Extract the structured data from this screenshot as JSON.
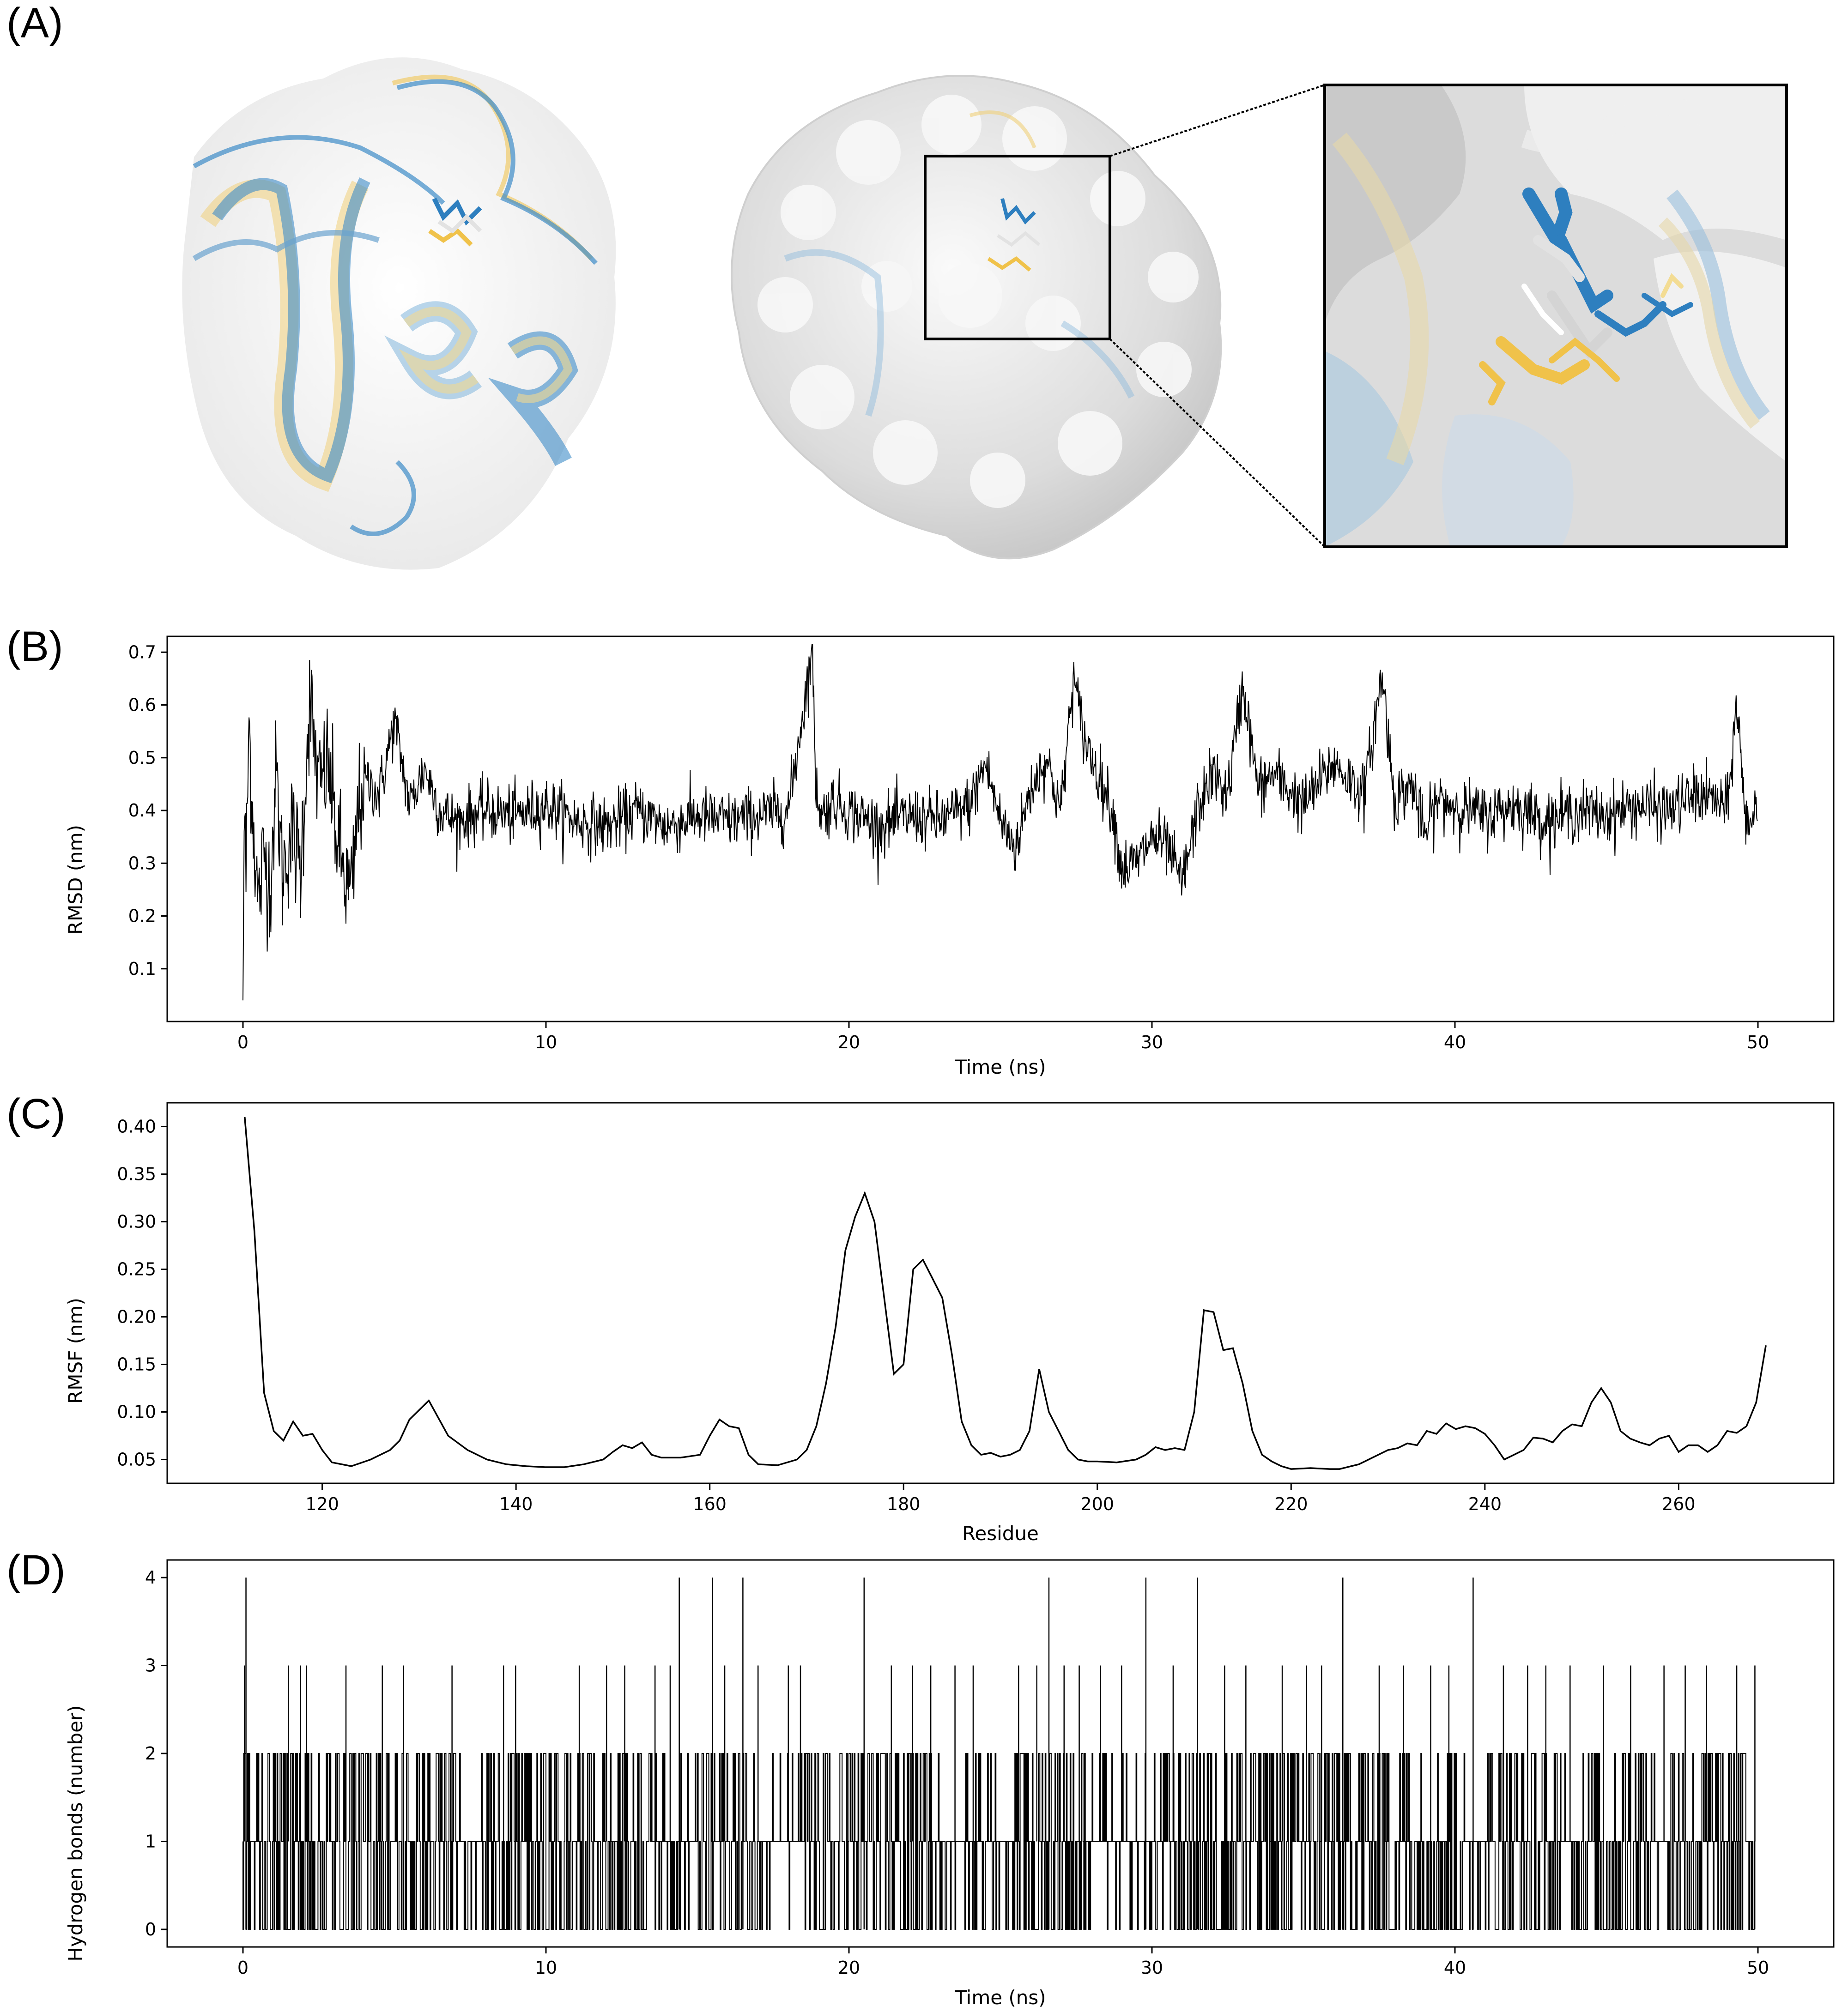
{
  "panels": {
    "a": "(A)",
    "b": "(B)",
    "c": "(C)",
    "d": "(D)"
  },
  "colors": {
    "blue": "#2e7fbf",
    "yellow": "#f0c24a",
    "white_ligand": "#e2e2e2",
    "surface": "#eeeeee",
    "line": "#000000"
  },
  "chart_data": [
    {
      "id": "rmsd",
      "type": "line",
      "title": "",
      "xlabel": "Time (ns)",
      "ylabel": "RMSD (nm)",
      "xlim": [
        -2.5,
        52.5
      ],
      "ylim": [
        0.0,
        0.73
      ],
      "xticks": [
        0,
        10,
        20,
        30,
        40,
        50
      ],
      "yticks": [
        0.1,
        0.2,
        0.3,
        0.4,
        0.5,
        0.6,
        0.7
      ],
      "ytick_labels": [
        "0.1",
        "0.2",
        "0.3",
        "0.4",
        "0.5",
        "0.6",
        "0.7"
      ],
      "series": [
        {
          "name": "RMSD",
          "x": [
            0,
            0.05,
            0.1,
            0.2,
            0.3,
            0.5,
            0.7,
            0.9,
            1.1,
            1.3,
            1.6,
            1.9,
            2.2,
            2.5,
            2.8,
            3.1,
            3.4,
            3.6,
            3.8,
            4.0,
            4.5,
            5.0,
            5.5,
            6.0,
            6.5,
            7,
            8,
            9,
            10,
            11,
            12,
            13,
            14,
            15,
            16,
            17,
            18,
            18.8,
            18.9,
            19.1,
            19.5,
            20,
            21,
            22,
            23,
            24,
            24.5,
            25,
            25.5,
            26,
            26.5,
            27,
            27.4,
            27.8,
            28.3,
            28.7,
            29,
            29.5,
            30,
            30.5,
            31,
            31.5,
            32,
            32.5,
            33,
            33.5,
            34,
            35,
            36,
            37,
            37.6,
            38,
            38.6,
            39,
            39.4,
            40,
            41,
            42,
            43,
            44,
            45,
            46,
            47,
            48,
            48.6,
            49,
            49.3,
            49.6,
            50
          ],
          "y": [
            0.04,
            0.44,
            0.27,
            0.57,
            0.42,
            0.22,
            0.32,
            0.26,
            0.47,
            0.28,
            0.36,
            0.29,
            0.61,
            0.44,
            0.49,
            0.35,
            0.26,
            0.24,
            0.4,
            0.46,
            0.43,
            0.57,
            0.41,
            0.48,
            0.4,
            0.38,
            0.4,
            0.39,
            0.41,
            0.38,
            0.37,
            0.4,
            0.37,
            0.39,
            0.38,
            0.39,
            0.4,
            0.71,
            0.45,
            0.39,
            0.42,
            0.4,
            0.37,
            0.39,
            0.38,
            0.41,
            0.49,
            0.38,
            0.33,
            0.44,
            0.5,
            0.4,
            0.65,
            0.53,
            0.46,
            0.4,
            0.29,
            0.3,
            0.35,
            0.33,
            0.26,
            0.4,
            0.47,
            0.43,
            0.64,
            0.44,
            0.47,
            0.41,
            0.49,
            0.43,
            0.66,
            0.42,
            0.45,
            0.35,
            0.42,
            0.41,
            0.39,
            0.41,
            0.38,
            0.4,
            0.39,
            0.41,
            0.4,
            0.43,
            0.42,
            0.4,
            0.61,
            0.37,
            0.41
          ]
        }
      ]
    },
    {
      "id": "rmsf",
      "type": "line",
      "title": "",
      "xlabel": "Residue",
      "ylabel": "RMSF (nm)",
      "xlim": [
        104,
        276
      ],
      "ylim": [
        0.025,
        0.425
      ],
      "xticks": [
        120,
        140,
        160,
        180,
        200,
        220,
        240,
        260
      ],
      "yticks": [
        0.05,
        0.1,
        0.15,
        0.2,
        0.25,
        0.3,
        0.35,
        0.4
      ],
      "ytick_labels": [
        "0.05",
        "0.10",
        "0.15",
        "0.20",
        "0.25",
        "0.30",
        "0.35",
        "0.40"
      ],
      "series": [
        {
          "name": "RMSF",
          "x": [
            112,
            113,
            114,
            115,
            116,
            117,
            118,
            119,
            120,
            121,
            123,
            125,
            127,
            128,
            129,
            131,
            133,
            135,
            137,
            139,
            141,
            143,
            145,
            147,
            149,
            150,
            151,
            152,
            153,
            154,
            155,
            157,
            159,
            160,
            161,
            162,
            163,
            164,
            165,
            167,
            169,
            170,
            171,
            172,
            173,
            174,
            175,
            176,
            177,
            178,
            179,
            180,
            181,
            182,
            183,
            184,
            185,
            186,
            187,
            188,
            189,
            190,
            191,
            192,
            193,
            194,
            195,
            196,
            197,
            198,
            199,
            200,
            202,
            204,
            205,
            206,
            207,
            208,
            209,
            210,
            211,
            212,
            213,
            214,
            215,
            216,
            217,
            218,
            219,
            220,
            222,
            224,
            225,
            227,
            229,
            230,
            231,
            232,
            233,
            234,
            235,
            236,
            237,
            238,
            239,
            240,
            241,
            242,
            243,
            244,
            245,
            246,
            247,
            248,
            249,
            250,
            251,
            252,
            253,
            254,
            255,
            256,
            257,
            258,
            259,
            260,
            261,
            262,
            263,
            264,
            265,
            266,
            267,
            268,
            269
          ],
          "y": [
            0.41,
            0.29,
            0.12,
            0.08,
            0.07,
            0.09,
            0.075,
            0.077,
            0.06,
            0.047,
            0.043,
            0.05,
            0.06,
            0.07,
            0.092,
            0.112,
            0.075,
            0.06,
            0.05,
            0.045,
            0.043,
            0.042,
            0.042,
            0.045,
            0.05,
            0.058,
            0.065,
            0.062,
            0.068,
            0.055,
            0.052,
            0.052,
            0.055,
            0.075,
            0.092,
            0.085,
            0.083,
            0.055,
            0.045,
            0.044,
            0.05,
            0.06,
            0.085,
            0.13,
            0.19,
            0.27,
            0.305,
            0.33,
            0.3,
            0.22,
            0.14,
            0.15,
            0.25,
            0.26,
            0.24,
            0.22,
            0.16,
            0.09,
            0.065,
            0.055,
            0.057,
            0.053,
            0.055,
            0.06,
            0.08,
            0.145,
            0.1,
            0.08,
            0.06,
            0.05,
            0.048,
            0.048,
            0.047,
            0.05,
            0.055,
            0.063,
            0.06,
            0.062,
            0.06,
            0.1,
            0.207,
            0.205,
            0.165,
            0.167,
            0.13,
            0.08,
            0.055,
            0.048,
            0.043,
            0.04,
            0.041,
            0.04,
            0.04,
            0.045,
            0.055,
            0.06,
            0.062,
            0.067,
            0.065,
            0.08,
            0.077,
            0.088,
            0.082,
            0.085,
            0.083,
            0.077,
            0.065,
            0.05,
            0.055,
            0.06,
            0.073,
            0.072,
            0.068,
            0.08,
            0.087,
            0.085,
            0.11,
            0.125,
            0.11,
            0.08,
            0.072,
            0.068,
            0.065,
            0.072,
            0.075,
            0.058,
            0.065,
            0.065,
            0.058,
            0.065,
            0.08,
            0.078,
            0.085,
            0.11,
            0.17
          ]
        }
      ]
    },
    {
      "id": "hbonds",
      "type": "line",
      "title": "",
      "xlabel": "Time (ns)",
      "ylabel": "Hydrogen bonds (number)",
      "xlim": [
        -2.5,
        52.5
      ],
      "ylim": [
        -0.2,
        4.2
      ],
      "xticks": [
        0,
        10,
        20,
        30,
        40,
        50
      ],
      "yticks": [
        0,
        1,
        2,
        3,
        4
      ],
      "ytick_labels": [
        "0",
        "1",
        "2",
        "3",
        "4"
      ],
      "baseline_note": "dense fluctuations mostly between 0 and 2",
      "spikes_to_4": [
        0.1,
        14.4,
        15.5,
        16.5,
        20.5,
        26.6,
        29.8,
        31.5,
        36.3,
        40.6
      ],
      "spikes_to_3": [
        0.05,
        1.5,
        1.9,
        2.1,
        3.4,
        4.6,
        5.3,
        6.9,
        8.6,
        9.0,
        11.1,
        12.0,
        12.6,
        13.6,
        14.1,
        15.9,
        17.0,
        18.0,
        18.4,
        21.4,
        22.1,
        22.7,
        23.5,
        24.1,
        25.6,
        26.2,
        27.1,
        27.6,
        28.3,
        29.0,
        30.7,
        32.4,
        33.1,
        34.3,
        35.1,
        35.6,
        37.5,
        38.3,
        39.2,
        39.8,
        41.6,
        42.4,
        43.0,
        43.8,
        44.9,
        45.8,
        46.9,
        47.6,
        48.3,
        49.3,
        49.9
      ],
      "active_ranges": [
        [
          0.0,
          7.0
        ],
        [
          8.0,
          13.5
        ],
        [
          15.0,
          17.0
        ],
        [
          18.5,
          22.7
        ],
        [
          25.5,
          27.8
        ],
        [
          30.0,
          40.3
        ],
        [
          41.0,
          43.5
        ],
        [
          44.0,
          46.5
        ],
        [
          47.0,
          49.9
        ]
      ]
    }
  ]
}
